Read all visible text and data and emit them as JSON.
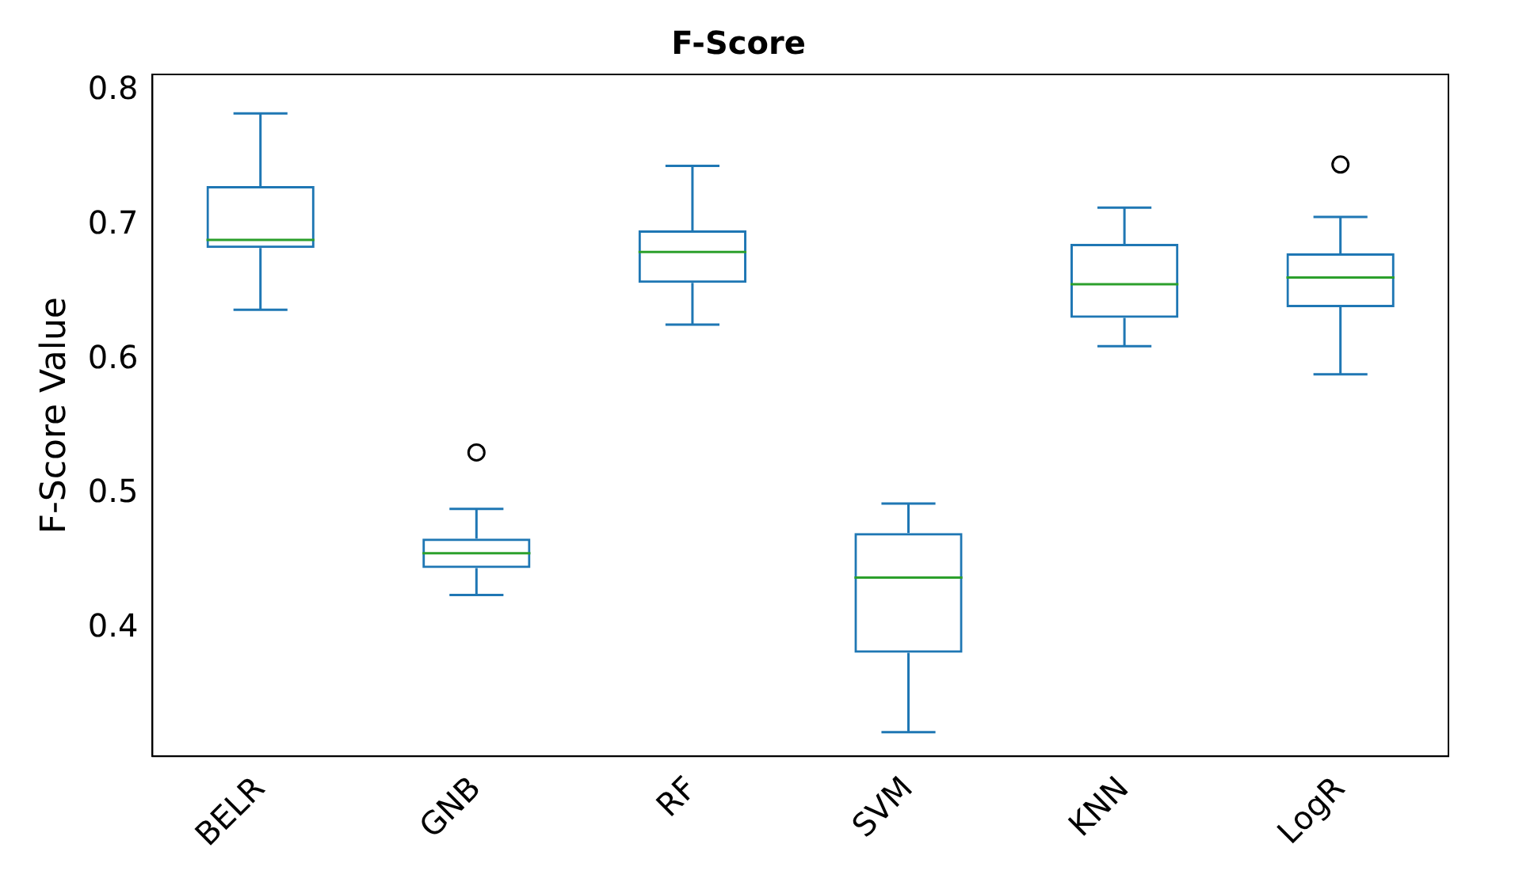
{
  "chart_data": {
    "type": "box",
    "title": "F-Score",
    "ylabel": "F-Score Value",
    "categories": [
      "BELR",
      "GNB",
      "RF",
      "SVM",
      "KNN",
      "LogR"
    ],
    "color": "#1f77b4",
    "grid": false,
    "legend": false,
    "boxes": [
      {
        "low": 0.637,
        "q1": 0.683,
        "median": 0.689,
        "q3": 0.729,
        "high": 0.783
      },
      {
        "low": 0.425,
        "q1": 0.445,
        "median": 0.456,
        "q3": 0.467,
        "high": 0.489,
        "outliers": [
          0.531
        ]
      },
      {
        "low": 0.626,
        "q1": 0.657,
        "median": 0.68,
        "q3": 0.696,
        "high": 0.744
      },
      {
        "low": 0.323,
        "q1": 0.382,
        "median": 0.438,
        "q3": 0.471,
        "high": 0.493
      },
      {
        "low": 0.61,
        "q1": 0.631,
        "median": 0.656,
        "q3": 0.686,
        "high": 0.713
      },
      {
        "low": 0.589,
        "q1": 0.639,
        "median": 0.661,
        "q3": 0.679,
        "high": 0.706,
        "outliers": [
          0.745
        ]
      }
    ],
    "ylim": [
      0.305,
      0.812
    ],
    "yticks": [
      0.4,
      0.5,
      0.6,
      0.7,
      0.8
    ]
  }
}
